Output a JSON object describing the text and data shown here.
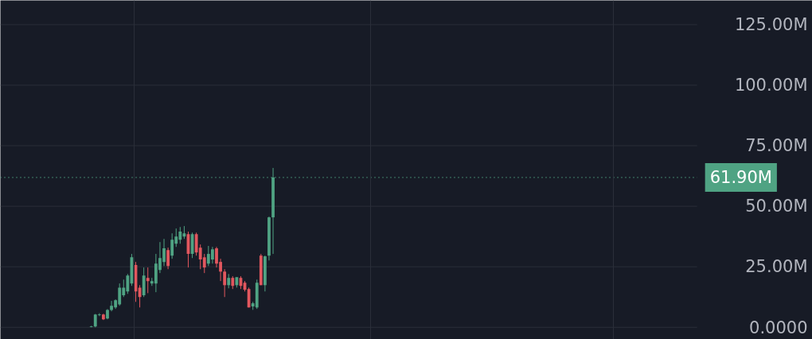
{
  "chart_data": {
    "type": "candlestick",
    "categories": [
      null,
      null,
      null,
      null,
      null,
      null,
      null,
      null,
      null,
      null,
      null,
      null,
      null,
      null,
      null,
      null,
      null,
      null,
      null,
      null,
      null,
      null,
      null,
      null,
      null,
      null,
      null,
      null,
      null,
      null,
      null,
      null,
      null,
      null,
      null,
      null,
      null,
      null,
      null,
      null,
      null,
      null,
      null,
      null,
      null,
      null,
      null,
      null,
      null,
      null,
      null,
      null,
      null,
      null,
      null,
      null,
      null,
      null,
      null,
      null,
      null,
      null,
      null,
      null,
      null,
      null,
      null,
      null,
      null,
      null,
      null,
      null,
      null,
      null,
      null,
      null,
      null,
      null,
      null,
      null,
      null,
      null,
      null,
      null,
      null,
      null,
      null,
      null,
      null,
      null,
      null,
      null,
      null,
      null,
      null,
      null,
      null,
      null,
      null,
      null,
      null,
      null,
      null,
      null,
      null,
      null,
      null,
      null,
      null,
      null,
      null,
      null,
      null,
      null,
      null,
      null,
      null,
      null,
      null,
      null,
      null,
      null,
      null,
      null,
      null,
      null,
      null,
      null,
      null,
      null,
      null,
      null,
      null,
      null,
      null,
      null,
      null,
      null,
      null,
      null,
      null,
      null,
      null,
      null,
      null,
      null,
      null,
      null,
      null,
      null,
      null,
      null,
      null,
      null,
      null,
      null,
      null,
      null,
      null,
      null,
      null,
      null,
      null,
      null,
      null,
      null,
      null,
      null,
      null,
      null,
      null,
      null,
      null,
      null,
      null,
      null,
      null,
      null,
      null,
      null,
      null,
      null,
      null,
      null,
      null,
      null,
      null,
      null,
      null,
      null,
      null,
      null,
      null,
      null,
      null,
      null,
      null,
      null,
      null,
      null,
      null
    ],
    "ohlc": [
      null,
      null,
      null,
      null,
      null,
      null,
      null,
      null,
      null,
      null,
      null,
      null,
      null,
      null,
      null,
      null,
      null,
      null,
      null,
      null,
      null,
      null,
      [
        0.2,
        0.6,
        0,
        0.4
      ],
      [
        0.3,
        5.5,
        0,
        5.3
      ],
      [
        5.0,
        5.8,
        4.6,
        5.3
      ],
      [
        5.3,
        5.6,
        3.0,
        3.3
      ],
      [
        3.6,
        7.5,
        3.3,
        7.2
      ],
      [
        7.2,
        10.9,
        6.6,
        8.9
      ],
      [
        8.2,
        11.5,
        7.6,
        11.2
      ],
      [
        9.5,
        18.1,
        8.9,
        16.4
      ],
      [
        13.2,
        19.7,
        12.5,
        16.4
      ],
      [
        14.8,
        22.0,
        13.8,
        21.4
      ],
      [
        18.1,
        30.3,
        17.1,
        28.9
      ],
      [
        25.7,
        27.0,
        10.5,
        14.8
      ],
      [
        16.4,
        17.4,
        8.2,
        12.5
      ],
      [
        13.2,
        24.7,
        12.5,
        21.4
      ],
      [
        20.4,
        24.7,
        14.1,
        19.1
      ],
      [
        18.1,
        20.4,
        17.1,
        19.1
      ],
      [
        18.1,
        30.3,
        14.5,
        26.3
      ],
      [
        23.7,
        35.2,
        22.4,
        28.6
      ],
      [
        27.0,
        36.5,
        25.3,
        32.6
      ],
      [
        31.9,
        32.9,
        24.0,
        25.3
      ],
      [
        29.6,
        38.8,
        28.3,
        36.2
      ],
      [
        34.5,
        40.8,
        33.2,
        37.5
      ],
      [
        36.2,
        41.4,
        34.5,
        39.5
      ],
      [
        37.5,
        41.8,
        36.5,
        38.8
      ],
      [
        38.5,
        39.5,
        24.7,
        30.3
      ],
      [
        30.3,
        39.1,
        28.6,
        38.5
      ],
      [
        38.5,
        39.1,
        29.6,
        30.9
      ],
      [
        32.9,
        34.2,
        24.0,
        28.0
      ],
      [
        28.9,
        30.3,
        22.4,
        24.7
      ],
      [
        26.3,
        33.6,
        25.3,
        30.3
      ],
      [
        28.0,
        33.2,
        26.3,
        32.2
      ],
      [
        32.6,
        33.2,
        24.7,
        26.3
      ],
      [
        27.0,
        28.3,
        19.1,
        23.0
      ],
      [
        23.0,
        24.0,
        12.5,
        17.4
      ],
      [
        17.4,
        22.0,
        16.1,
        20.4
      ],
      [
        20.4,
        21.1,
        15.8,
        17.1
      ],
      [
        17.4,
        20.7,
        16.4,
        20.7
      ],
      [
        20.4,
        21.1,
        15.8,
        17.1
      ],
      [
        18.4,
        19.1,
        14.8,
        15.5
      ],
      [
        15.8,
        16.4,
        8.2,
        8.2
      ],
      [
        8.6,
        10.5,
        7.2,
        9.9
      ],
      [
        8.2,
        19.7,
        7.6,
        18.4
      ],
      [
        29.6,
        30.3,
        17.4,
        17.4
      ],
      [
        17.4,
        29.6,
        14.8,
        29.3
      ],
      [
        29.6,
        45.7,
        27.6,
        45.4
      ],
      [
        45.4,
        65.8,
        30.3,
        61.9
      ],
      null,
      null,
      null,
      null,
      null,
      null,
      null,
      null,
      null,
      null,
      null,
      null,
      null,
      null,
      null,
      null,
      null,
      null,
      null,
      null,
      null,
      null,
      null,
      null,
      null,
      null,
      null,
      null,
      null,
      null,
      null,
      null,
      null,
      null,
      null,
      null,
      null,
      null,
      null,
      null,
      null,
      null,
      null,
      null,
      null,
      null,
      null,
      null,
      null,
      null,
      null,
      null,
      null,
      null,
      null,
      null,
      null,
      null,
      null,
      null,
      null,
      null,
      null,
      null,
      null,
      null,
      null,
      null,
      null,
      null,
      null,
      null,
      null,
      null,
      null,
      null,
      null,
      null,
      null,
      null,
      null,
      null,
      null,
      null,
      null,
      null,
      null,
      null,
      null,
      null,
      null,
      null,
      null,
      null,
      null,
      null,
      null,
      null,
      null,
      null,
      null,
      null,
      null,
      null,
      null,
      null,
      null,
      null,
      null,
      null,
      null,
      null,
      null,
      null,
      null,
      null,
      null,
      null,
      null,
      null,
      null,
      null,
      null,
      null,
      null,
      null,
      null,
      null,
      null,
      null,
      null,
      null,
      null
    ],
    "colors": [
      null,
      null,
      null,
      null,
      null,
      null,
      null,
      null,
      null,
      null,
      null,
      null,
      null,
      null,
      null,
      null,
      null,
      null,
      null,
      null,
      null,
      null,
      "#4fa383",
      "#4fa383",
      "#4fa383",
      "#e2575e",
      "#4fa383",
      "#4fa383",
      "#4fa383",
      "#4fa383",
      "#4fa383",
      "#4fa383",
      "#4fa383",
      "#e2575e",
      "#e2575e",
      "#4fa383",
      "#e2575e",
      "#4fa383",
      "#4fa383",
      "#4fa383",
      "#4fa383",
      "#e2575e",
      "#4fa383",
      "#4fa383",
      "#4fa383",
      "#4fa383",
      "#e2575e",
      "#4fa383",
      "#e2575e",
      "#e2575e",
      "#e2575e",
      "#4fa383",
      "#4fa383",
      "#e2575e",
      "#e2575e",
      "#e2575e",
      "#4fa383",
      "#e2575e",
      "#4fa383",
      "#e2575e",
      "#e2575e",
      "#e2575e",
      "#4fa383",
      "#4fa383",
      "#e2575e",
      "#4fa383",
      "#4fa383",
      "#4fa383",
      null,
      null,
      null,
      null,
      null,
      null,
      null,
      null,
      null,
      null,
      null,
      null,
      null,
      null,
      null,
      null,
      null,
      null,
      null,
      null,
      null,
      null,
      null,
      null,
      null,
      null,
      null,
      null,
      null,
      null,
      null,
      null,
      null,
      null,
      null,
      null,
      null,
      null,
      null,
      null,
      null,
      null,
      null,
      null,
      null,
      null,
      null,
      null,
      null,
      null,
      null,
      null,
      null,
      null,
      null,
      null,
      null,
      null,
      null,
      null,
      null,
      null,
      null,
      null,
      null,
      null,
      null,
      null,
      null,
      null,
      null,
      null,
      null,
      null,
      null,
      null,
      null,
      null,
      null,
      null,
      null,
      null,
      null,
      null,
      null,
      null,
      null,
      null,
      null,
      null,
      null,
      null,
      null,
      null,
      null,
      null,
      null,
      null,
      null,
      null,
      null,
      null,
      null,
      null,
      null,
      null,
      null,
      null,
      null,
      null,
      null,
      null,
      null,
      null,
      null,
      null,
      null,
      null,
      null,
      null,
      null,
      null,
      null,
      null,
      null,
      null,
      null,
      null,
      null,
      null,
      null,
      null,
      null
    ],
    "ylim": [
      -5,
      135
    ],
    "yticks": [
      {
        "value": 0,
        "label": "0.0000"
      },
      {
        "value": 25,
        "label": "25.00M"
      },
      {
        "value": 50,
        "label": "50.00M"
      },
      {
        "value": 75,
        "label": "75.00M"
      },
      {
        "value": 100,
        "label": "100.00M"
      },
      {
        "value": 125,
        "label": "125.00M"
      }
    ],
    "ref_lines": [
      {
        "axis": "y",
        "value": 61.9,
        "label": "61.90M",
        "color": "#4fa383",
        "line_style": "dotted"
      }
    ],
    "grid": "y",
    "tick_labels": "y"
  }
}
